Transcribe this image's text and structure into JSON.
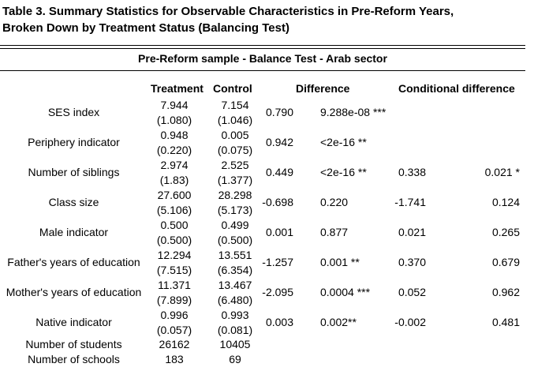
{
  "title_line1": "Table 3. Summary Statistics for Observable Characteristics in Pre-Reform Years,",
  "title_line2": "Broken Down by Treatment Status (Balancing Test)",
  "subtitle": "Pre-Reform  sample - Balance Test - Arab sector",
  "headers": {
    "treatment": "Treatment",
    "control": "Control",
    "difference": "Difference",
    "conditional": "Conditional difference"
  },
  "rows": [
    {
      "label": "SES index",
      "t": "7.944",
      "t_se": "(1.080)",
      "c": "7.154",
      "c_se": "(1.046)",
      "diff": "0.790",
      "diff_p": "9.288e-08 ***",
      "cdiff": "",
      "cdiff_p": ""
    },
    {
      "label": "Periphery indicator",
      "t": "0.948",
      "t_se": "(0.220)",
      "c": "0.005",
      "c_se": "(0.075)",
      "diff": "0.942",
      "diff_p": "<2e-16 **",
      "cdiff": "",
      "cdiff_p": ""
    },
    {
      "label": "Number of siblings",
      "t": "2.974",
      "t_se": "(1.83)",
      "c": "2.525",
      "c_se": "(1.377)",
      "diff": "0.449",
      "diff_p": "<2e-16 **",
      "cdiff": "0.338",
      "cdiff_p": "0.021 *"
    },
    {
      "label": "Class size",
      "t": "27.600",
      "t_se": "(5.106)",
      "c": "28.298",
      "c_se": "(5.173)",
      "diff": "-0.698",
      "diff_p": "0.220",
      "cdiff": "-1.741",
      "cdiff_p": "0.124"
    },
    {
      "label": "Male indicator",
      "t": "0.500",
      "t_se": "(0.500)",
      "c": "0.499",
      "c_se": "(0.500)",
      "diff": "0.001",
      "diff_p": "0.877",
      "cdiff": "0.021",
      "cdiff_p": "0.265"
    },
    {
      "label": "Father's years of education",
      "t": "12.294",
      "t_se": "(7.515)",
      "c": "13.551",
      "c_se": "(6.354)",
      "diff": "-1.257",
      "diff_p": "0.001 **",
      "cdiff": "0.370",
      "cdiff_p": "0.679"
    },
    {
      "label": "Mother's years of education",
      "t": "11.371",
      "t_se": "(7.899)",
      "c": "13.467",
      "c_se": "(6.480)",
      "diff": "-2.095",
      "diff_p": "0.0004 ***",
      "cdiff": "0.052",
      "cdiff_p": "0.962"
    },
    {
      "label": "Native indicator",
      "t": "0.996",
      "t_se": "(0.057)",
      "c": "0.993",
      "c_se": "(0.081)",
      "diff": "0.003",
      "diff_p": "0.002**",
      "cdiff": "-0.002",
      "cdiff_p": "0.481"
    }
  ],
  "footer_rows": [
    {
      "label": "Number of students",
      "t": "26162",
      "c": "10405"
    },
    {
      "label": "Number of schools",
      "t": "183",
      "c": "69"
    }
  ]
}
